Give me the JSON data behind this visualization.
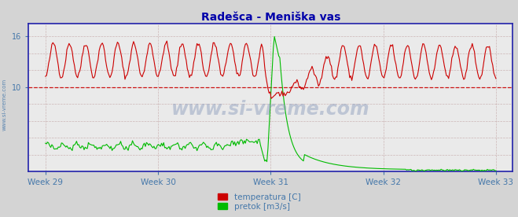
{
  "title": "Radešca - Meniška vas",
  "title_color": "#0000aa",
  "title_fontsize": 10,
  "bg_color": "#d4d4d4",
  "plot_bg_color": "#eaeaea",
  "grid_color": "#c0a0a0",
  "grid_color_v": "#c0a0a0",
  "axis_color": "#2222aa",
  "text_color": "#4477aa",
  "watermark": "www.si-vreme.com",
  "yticks": [
    10,
    16
  ],
  "ylim": [
    0,
    17.5
  ],
  "xlim_weeks": [
    28.85,
    33.15
  ],
  "week_ticks": [
    29,
    30,
    31,
    32,
    33
  ],
  "week_labels": [
    "Week 29",
    "Week 30",
    "Week 31",
    "Week 32",
    "Week 33"
  ],
  "temp_color": "#cc0000",
  "flow_color": "#00bb00",
  "avg_line_color": "#cc0000",
  "avg_value": 10.0,
  "legend_labels": [
    "temperatura [C]",
    "pretok [m3/s]"
  ],
  "legend_colors": [
    "#cc0000",
    "#00bb00"
  ]
}
